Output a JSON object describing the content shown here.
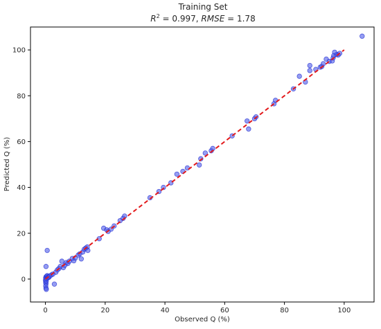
{
  "chart_data": {
    "type": "scatter",
    "title": "Training Set",
    "subtitle_parts": {
      "r2_symbol": "R",
      "r2_exp": "2",
      "r2_rest": " = 0.997, ",
      "rmse_symbol": "RMSE",
      "rmse_rest": " = 1.78"
    },
    "xlabel": "Observed Q (%)",
    "ylabel": "Predicted Q (%)",
    "xlim": [
      -5,
      110
    ],
    "ylim": [
      -10,
      110
    ],
    "xticks": [
      0,
      20,
      40,
      60,
      80,
      100
    ],
    "yticks": [
      0,
      20,
      40,
      60,
      80,
      100
    ],
    "grid": false,
    "point_color": "#4f5bea",
    "point_edge_color": "#1f2bd0",
    "fit_line": {
      "x": [
        0,
        100
      ],
      "y": [
        0,
        100
      ],
      "color": "#e31a1c",
      "style": "dashed"
    },
    "series": [
      {
        "points": [
          [
            0.0,
            -0.5
          ],
          [
            0.1,
            0.5
          ],
          [
            0.2,
            1.0
          ],
          [
            0.1,
            -1.5
          ],
          [
            0.2,
            -2.0
          ],
          [
            0.1,
            -3.0
          ],
          [
            0.2,
            -4.0
          ],
          [
            0.3,
            -4.5
          ],
          [
            0.3,
            -0.8
          ],
          [
            0.4,
            0.2
          ],
          [
            0.5,
            1.2
          ],
          [
            0.6,
            1.5
          ],
          [
            0.2,
            5.5
          ],
          [
            0.6,
            12.5
          ],
          [
            0.8,
            0.6
          ],
          [
            1.0,
            1.0
          ],
          [
            1.2,
            0.8
          ],
          [
            1.5,
            1.4
          ],
          [
            2.0,
            1.8
          ],
          [
            2.5,
            2.2
          ],
          [
            3.0,
            -2.2
          ],
          [
            3.5,
            3.0
          ],
          [
            4.0,
            4.0
          ],
          [
            4.5,
            4.6
          ],
          [
            5.0,
            5.5
          ],
          [
            5.5,
            7.8
          ],
          [
            6.0,
            5.0
          ],
          [
            6.5,
            6.0
          ],
          [
            7.0,
            7.2
          ],
          [
            7.5,
            6.8
          ],
          [
            8.0,
            7.8
          ],
          [
            9.0,
            9.0
          ],
          [
            9.5,
            8.0
          ],
          [
            10.0,
            9.2
          ],
          [
            11.0,
            10.5
          ],
          [
            11.5,
            11.0
          ],
          [
            12.0,
            8.8
          ],
          [
            12.5,
            11.8
          ],
          [
            13.0,
            13.0
          ],
          [
            13.5,
            13.5
          ],
          [
            14.0,
            14.0
          ],
          [
            14.2,
            12.5
          ],
          [
            18.0,
            17.6
          ],
          [
            19.5,
            22.2
          ],
          [
            20.5,
            21.5
          ],
          [
            21.0,
            20.8
          ],
          [
            22.0,
            21.8
          ],
          [
            23.0,
            23.2
          ],
          [
            25.0,
            25.5
          ],
          [
            26.0,
            26.5
          ],
          [
            26.5,
            27.5
          ],
          [
            35.0,
            35.5
          ],
          [
            38.0,
            38.2
          ],
          [
            39.5,
            40.0
          ],
          [
            42.0,
            42.0
          ],
          [
            44.0,
            45.8
          ],
          [
            46.0,
            47.0
          ],
          [
            47.5,
            48.5
          ],
          [
            51.5,
            49.8
          ],
          [
            52.0,
            52.5
          ],
          [
            53.5,
            55.0
          ],
          [
            55.5,
            56.0
          ],
          [
            56.0,
            57.0
          ],
          [
            62.5,
            62.5
          ],
          [
            67.5,
            69.0
          ],
          [
            68.0,
            65.5
          ],
          [
            70.0,
            70.0
          ],
          [
            70.5,
            70.8
          ],
          [
            76.5,
            76.5
          ],
          [
            77.0,
            78.0
          ],
          [
            83.0,
            83.0
          ],
          [
            85.0,
            88.5
          ],
          [
            87.0,
            86.0
          ],
          [
            88.5,
            91.0
          ],
          [
            88.5,
            93.2
          ],
          [
            90.5,
            91.5
          ],
          [
            92.0,
            92.5
          ],
          [
            92.5,
            92.8
          ],
          [
            93.0,
            94.0
          ],
          [
            94.0,
            96.0
          ],
          [
            95.0,
            95.0
          ],
          [
            96.0,
            95.2
          ],
          [
            96.3,
            96.5
          ],
          [
            96.5,
            97.5
          ],
          [
            96.8,
            99.0
          ],
          [
            97.5,
            98.0
          ],
          [
            98.0,
            97.8
          ],
          [
            98.5,
            98.5
          ],
          [
            106.0,
            106.0
          ]
        ]
      }
    ]
  }
}
